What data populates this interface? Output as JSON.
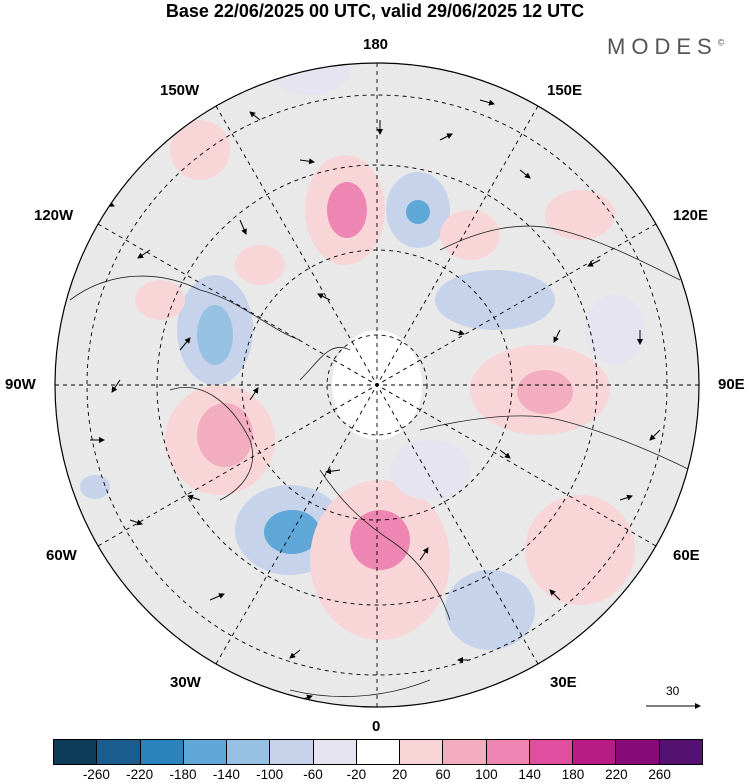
{
  "title": "Base 22/06/2025 00 UTC, valid 29/06/2025 12 UTC",
  "brand": "MODES",
  "brand_mark": "©",
  "longitude_labels": {
    "lon_180": "180",
    "lon_150w": "150W",
    "lon_150e": "150E",
    "lon_120w": "120W",
    "lon_120e": "120E",
    "lon_90w": "90W",
    "lon_90e": "90E",
    "lon_60w": "60W",
    "lon_60e": "60E",
    "lon_30w": "30W",
    "lon_30e": "30E",
    "lon_0": "0"
  },
  "vector_scale": {
    "value": "30"
  },
  "colorbar": {
    "ticks": [
      "-260",
      "-220",
      "-180",
      "-140",
      "-100",
      "-60",
      "-20",
      "20",
      "60",
      "100",
      "140",
      "180",
      "220",
      "260"
    ],
    "colors": [
      "#0d3b5a",
      "#1a5e8f",
      "#2b82bd",
      "#5ea7d6",
      "#97c1e3",
      "#c7d3ea",
      "#e6e4f1",
      "#ffffff",
      "#f8d6d8",
      "#f2aec0",
      "#ee86b4",
      "#e04ea0",
      "#b81a86",
      "#860b78",
      "#551170"
    ]
  }
}
